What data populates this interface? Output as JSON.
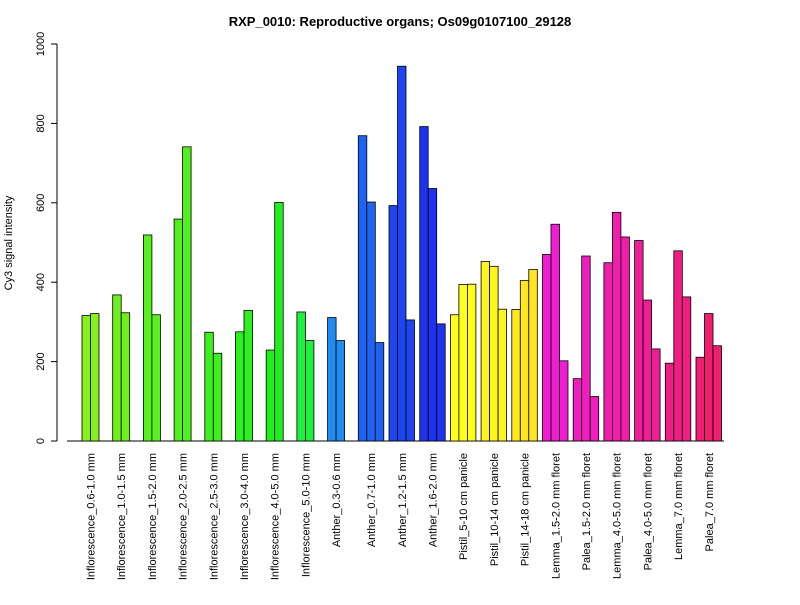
{
  "chart_data": {
    "type": "bar",
    "title": "RXP_0010: Reproductive organs; Os09g0107100_29128",
    "xlabel": "",
    "ylabel": "Cy3 signal intensity",
    "ylim": [
      0,
      1000
    ],
    "yticks": [
      0,
      200,
      400,
      600,
      800,
      1000
    ],
    "grid": false,
    "legend": "none",
    "categories": [
      "Inflorescence_0.6-1.0 mm",
      "Inflorescence_1.0-1.5 mm",
      "Inflorescence_1.5-2.0 mm",
      "Inflorescence_2.0-2.5 mm",
      "Inflorescence_2.5-3.0 mm",
      "Inflorescence_3.0-4.0 mm",
      "Inflorescence_4.0-5.0 mm",
      "Inflorescence_5.0-10 mm",
      "Anther_0.3-0.6 mm",
      "Anther_0.7-1.0 mm",
      "Anther_1.2-1.5 mm",
      "Anther_1.6-2.0 mm",
      "Pistil_5-10 cm panicle",
      "Pistil_10-14 cm panicle",
      "Pistil_14-18 cm panicle",
      "Lemma_1.5-2.0 mm floret",
      "Palea_1.5-2.0 mm floret",
      "Lemma_4.0-5.0 mm floret",
      "Palea_4.0-5.0 mm floret",
      "Lemma_7.0 mm floret",
      "Palea_7.0 mm floret"
    ],
    "groups": [
      {
        "values": [
          316,
          321
        ],
        "color": "#88f01e"
      },
      {
        "values": [
          368,
          323
        ],
        "color": "#6ef01e"
      },
      {
        "values": [
          519,
          318
        ],
        "color": "#5af01e"
      },
      {
        "values": [
          559,
          741
        ],
        "color": "#50f01e"
      },
      {
        "values": [
          274,
          221
        ],
        "color": "#3ef01e"
      },
      {
        "values": [
          275,
          329
        ],
        "color": "#2ef01e"
      },
      {
        "values": [
          229,
          601
        ],
        "color": "#1ef01e"
      },
      {
        "values": [
          325,
          253
        ],
        "color": "#1ef040"
      },
      {
        "values": [
          311,
          253
        ],
        "color": "#1e8cf0"
      },
      {
        "values": [
          769,
          602,
          248
        ],
        "color": "#1e64f0"
      },
      {
        "values": [
          593,
          944,
          305
        ],
        "color": "#1e46f0"
      },
      {
        "values": [
          792,
          636,
          295
        ],
        "color": "#1e32f0"
      },
      {
        "values": [
          318,
          394,
          395
        ],
        "color": "#ffff1e"
      },
      {
        "values": [
          452,
          440,
          332
        ],
        "color": "#fff51e"
      },
      {
        "values": [
          331,
          404,
          432
        ],
        "color": "#ffe61e"
      },
      {
        "values": [
          470,
          546,
          202
        ],
        "color": "#f01ed2"
      },
      {
        "values": [
          157,
          466,
          112
        ],
        "color": "#f01ebe"
      },
      {
        "values": [
          449,
          576,
          514
        ],
        "color": "#f01eaa"
      },
      {
        "values": [
          505,
          355,
          232
        ],
        "color": "#f01e96"
      },
      {
        "values": [
          196,
          479,
          363
        ],
        "color": "#f01e82"
      },
      {
        "values": [
          211,
          321,
          240
        ],
        "color": "#f01e6e"
      }
    ]
  }
}
